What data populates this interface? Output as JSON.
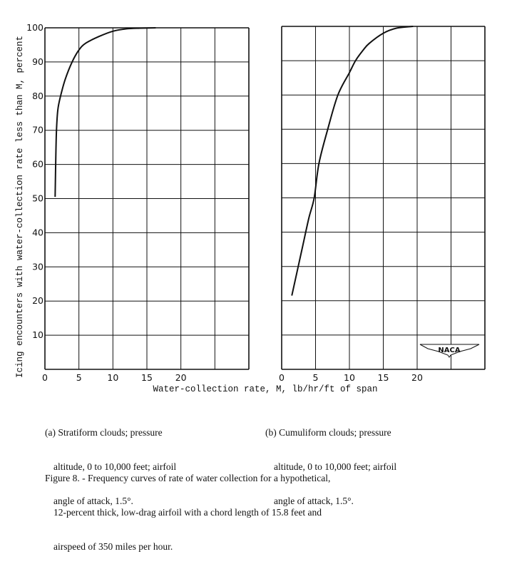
{
  "chart_data": [
    {
      "type": "line",
      "panel": "a",
      "xlabel": "Water-collection rate, M, lb/hr/ft of span",
      "ylabel": "Icing encounters with water-collection rate less than M, percent",
      "xlim": [
        0,
        30
      ],
      "ylim": [
        0,
        100
      ],
      "xticks": [
        0,
        5,
        10,
        15,
        20
      ],
      "yticks": [
        10,
        20,
        30,
        40,
        50,
        60,
        70,
        80,
        90,
        100
      ],
      "grid": true,
      "x": [
        1.5,
        1.6,
        1.7,
        1.9,
        2.3,
        3.0,
        4.0,
        5.0,
        6.0,
        8.0,
        10.0,
        12.0,
        14.0,
        16.3
      ],
      "y": [
        50.5,
        62,
        70,
        76,
        80,
        85,
        90,
        93.5,
        95.5,
        97.5,
        99,
        99.7,
        99.9,
        100
      ],
      "caption": [
        "(a) Stratiform clouds; pressure",
        "altitude, 0 to 10,000 feet; airfoil",
        "angle of attack, 1.5°."
      ]
    },
    {
      "type": "line",
      "panel": "b",
      "xlim": [
        0,
        30
      ],
      "ylim": [
        0,
        100
      ],
      "xticks": [
        0,
        5,
        10,
        15,
        20
      ],
      "grid": true,
      "x": [
        1.5,
        3.0,
        4.0,
        4.8,
        5.5,
        6.8,
        8.3,
        10.0,
        10.9,
        12.0,
        12.9,
        15.0,
        17.0,
        19.4
      ],
      "y": [
        21.5,
        35,
        44,
        50,
        60,
        70,
        80,
        86.5,
        90,
        93,
        95,
        98,
        99.5,
        100
      ],
      "caption": [
        "(b) Cumuliform clouds; pressure",
        "altitude, 0 to 10,000 feet; airfoil",
        "angle of attack, 1.5°."
      ]
    }
  ],
  "logo": "NACA",
  "figure_caption": [
    "Figure 8. - Frequency curves of rate of water collection for a hypothetical,",
    "12-percent thick, low-drag airfoil with a chord length of 15.8 feet and",
    "airspeed of 350 miles per hour."
  ]
}
